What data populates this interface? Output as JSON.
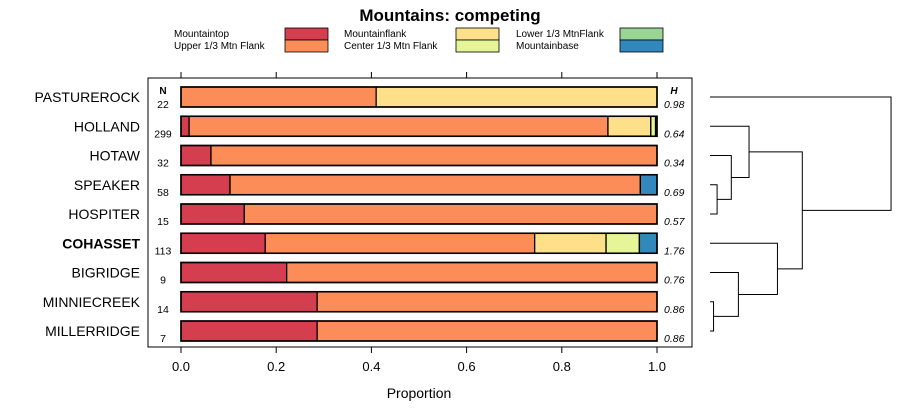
{
  "chart_data": {
    "type": "bar",
    "orientation": "horizontal",
    "stacked": true,
    "title": "Mountains: competing",
    "xlabel": "Proportion",
    "ylabel": "",
    "xlim": [
      0,
      1
    ],
    "xticks": [
      "0.0",
      "0.2",
      "0.4",
      "0.6",
      "0.8",
      "1.0"
    ],
    "n_header": "N",
    "h_header": "H",
    "legend_position": "top",
    "series": [
      {
        "name": "Mountaintop",
        "color": "#d53e4f"
      },
      {
        "name": "Upper 1/3 Mtn Flank",
        "color": "#fc8d59"
      },
      {
        "name": "Mountainflank",
        "color": "#fee08b"
      },
      {
        "name": "Center 1/3 Mtn Flank",
        "color": "#e6f598"
      },
      {
        "name": "Lower 1/3 MtnFlank",
        "color": "#99d594"
      },
      {
        "name": "Mountainbase",
        "color": "#3288bd"
      }
    ],
    "rows": [
      {
        "label": "PASTUREROCK",
        "bold": false,
        "n": "22",
        "h": "0.98",
        "values": [
          0,
          0.41,
          0.59,
          0,
          0,
          0
        ]
      },
      {
        "label": "HOLLAND",
        "bold": false,
        "n": "299",
        "h": "0.64",
        "values": [
          0.017,
          0.88,
          0.09,
          0.01,
          0,
          0.003
        ]
      },
      {
        "label": "HOTAW",
        "bold": false,
        "n": "32",
        "h": "0.34",
        "values": [
          0.063,
          0.937,
          0,
          0,
          0,
          0
        ]
      },
      {
        "label": "SPEAKER",
        "bold": false,
        "n": "58",
        "h": "0.69",
        "values": [
          0.103,
          0.862,
          0,
          0,
          0,
          0.035
        ]
      },
      {
        "label": "HOSPITER",
        "bold": false,
        "n": "15",
        "h": "0.57",
        "values": [
          0.133,
          0.867,
          0,
          0,
          0,
          0
        ]
      },
      {
        "label": "COHASSET",
        "bold": true,
        "n": "113",
        "h": "1.76",
        "values": [
          0.177,
          0.566,
          0.15,
          0.07,
          0,
          0.037
        ]
      },
      {
        "label": "BIGRIDGE",
        "bold": false,
        "n": "9",
        "h": "0.76",
        "values": [
          0.222,
          0.778,
          0,
          0,
          0,
          0
        ]
      },
      {
        "label": "MINNIECREEK",
        "bold": false,
        "n": "14",
        "h": "0.86",
        "values": [
          0.286,
          0.714,
          0,
          0,
          0,
          0
        ]
      },
      {
        "label": "MILLERRIDGE",
        "bold": false,
        "n": "7",
        "h": "0.86",
        "values": [
          0.286,
          0.714,
          0,
          0,
          0,
          0
        ]
      }
    ],
    "dendrogram": {
      "leaf_order": [
        "PASTUREROCK",
        "HOLLAND",
        "HOTAW",
        "SPEAKER",
        "HOSPITER",
        "COHASSET",
        "BIGRIDGE",
        "MINNIECREEK",
        "MILLERRIDGE"
      ],
      "merges": [
        {
          "a": "MINNIECREEK",
          "b": "MILLERRIDGE",
          "height": 0.01
        },
        {
          "a": "SPEAKER",
          "b": "HOSPITER",
          "height": 0.02
        },
        {
          "a": "HOTAW",
          "b": "SPEAKER+HOSPITER",
          "height": 0.06
        },
        {
          "a": "BIGRIDGE",
          "b": "MINNIECREEK+MILLERRIDGE",
          "height": 0.08
        },
        {
          "a": "HOLLAND",
          "b": "HOTAW+SPEAKER+HOSPITER",
          "height": 0.11
        },
        {
          "a": "COHASSET",
          "b": "BIGRIDGE+MINNIECREEK+MILLERRIDGE",
          "height": 0.19
        },
        {
          "a": "HOLLAND+HOTAW+SPEAKER+HOSPITER",
          "b": "COHASSET+BIGRIDGE+MINNIECREEK+MILLERRIDGE",
          "height": 0.26
        },
        {
          "a": "PASTUREROCK",
          "b": "rest",
          "height": 0.51
        }
      ]
    }
  }
}
